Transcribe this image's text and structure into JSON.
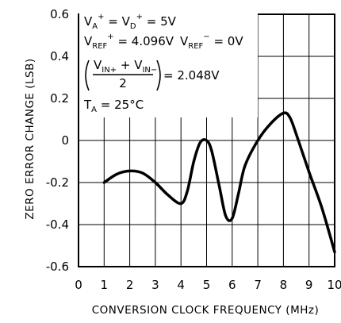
{
  "chart_data": {
    "type": "line",
    "xlabel": "CONVERSION CLOCK FREQUENCY (MHz)",
    "ylabel": "ZERO ERROR CHANGE (LSB)",
    "xlim": [
      0,
      10
    ],
    "ylim": [
      -0.6,
      0.6
    ],
    "grid": true,
    "x_ticks": [
      "0",
      "1",
      "2",
      "3",
      "4",
      "5",
      "6",
      "7",
      "8",
      "9",
      "10"
    ],
    "y_ticks": [
      "0.6",
      "0.4",
      "0.2",
      "0",
      "-0.2",
      "-0.4",
      "-0.6"
    ],
    "series": [
      {
        "color": "#000000",
        "x": [
          1,
          1.5,
          2,
          2.5,
          3,
          3.5,
          4,
          4.25,
          4.5,
          4.75,
          5,
          5.2,
          5.5,
          5.75,
          6,
          6.25,
          6.5,
          7,
          7.5,
          8,
          8.25,
          8.5,
          9,
          9.5,
          10
        ],
        "y": [
          -0.2,
          -0.16,
          -0.145,
          -0.155,
          -0.2,
          -0.26,
          -0.3,
          -0.24,
          -0.1,
          -0.01,
          0.0,
          -0.05,
          -0.22,
          -0.36,
          -0.37,
          -0.25,
          -0.12,
          0.0,
          0.08,
          0.13,
          0.11,
          0.03,
          -0.15,
          -0.32,
          -0.53
        ]
      }
    ],
    "annotation": {
      "line1": {
        "va": "V",
        "va_sub": "A",
        "va_sup": "+",
        "eq1": " = ",
        "vd": "V",
        "vd_sub": "D",
        "vd_sup": "+",
        "eq2": " = 5V"
      },
      "line2": {
        "vref": "V",
        "vref_sub": "REF",
        "vref_sup": "+",
        "val1": " = 4.096V",
        "vrefm": "V",
        "vrefm_sub": "REF",
        "vrefm_sup": "−",
        "val2": " = 0V"
      },
      "line3": {
        "num1": "V",
        "num1_sub": "IN+",
        "plus": " + ",
        "num2": "V",
        "num2_sub": "IN−",
        "den": "2",
        "val": " = 2.048V"
      },
      "line4": {
        "ta": "T",
        "ta_sub": "A",
        "val": " = 25°C"
      }
    }
  }
}
